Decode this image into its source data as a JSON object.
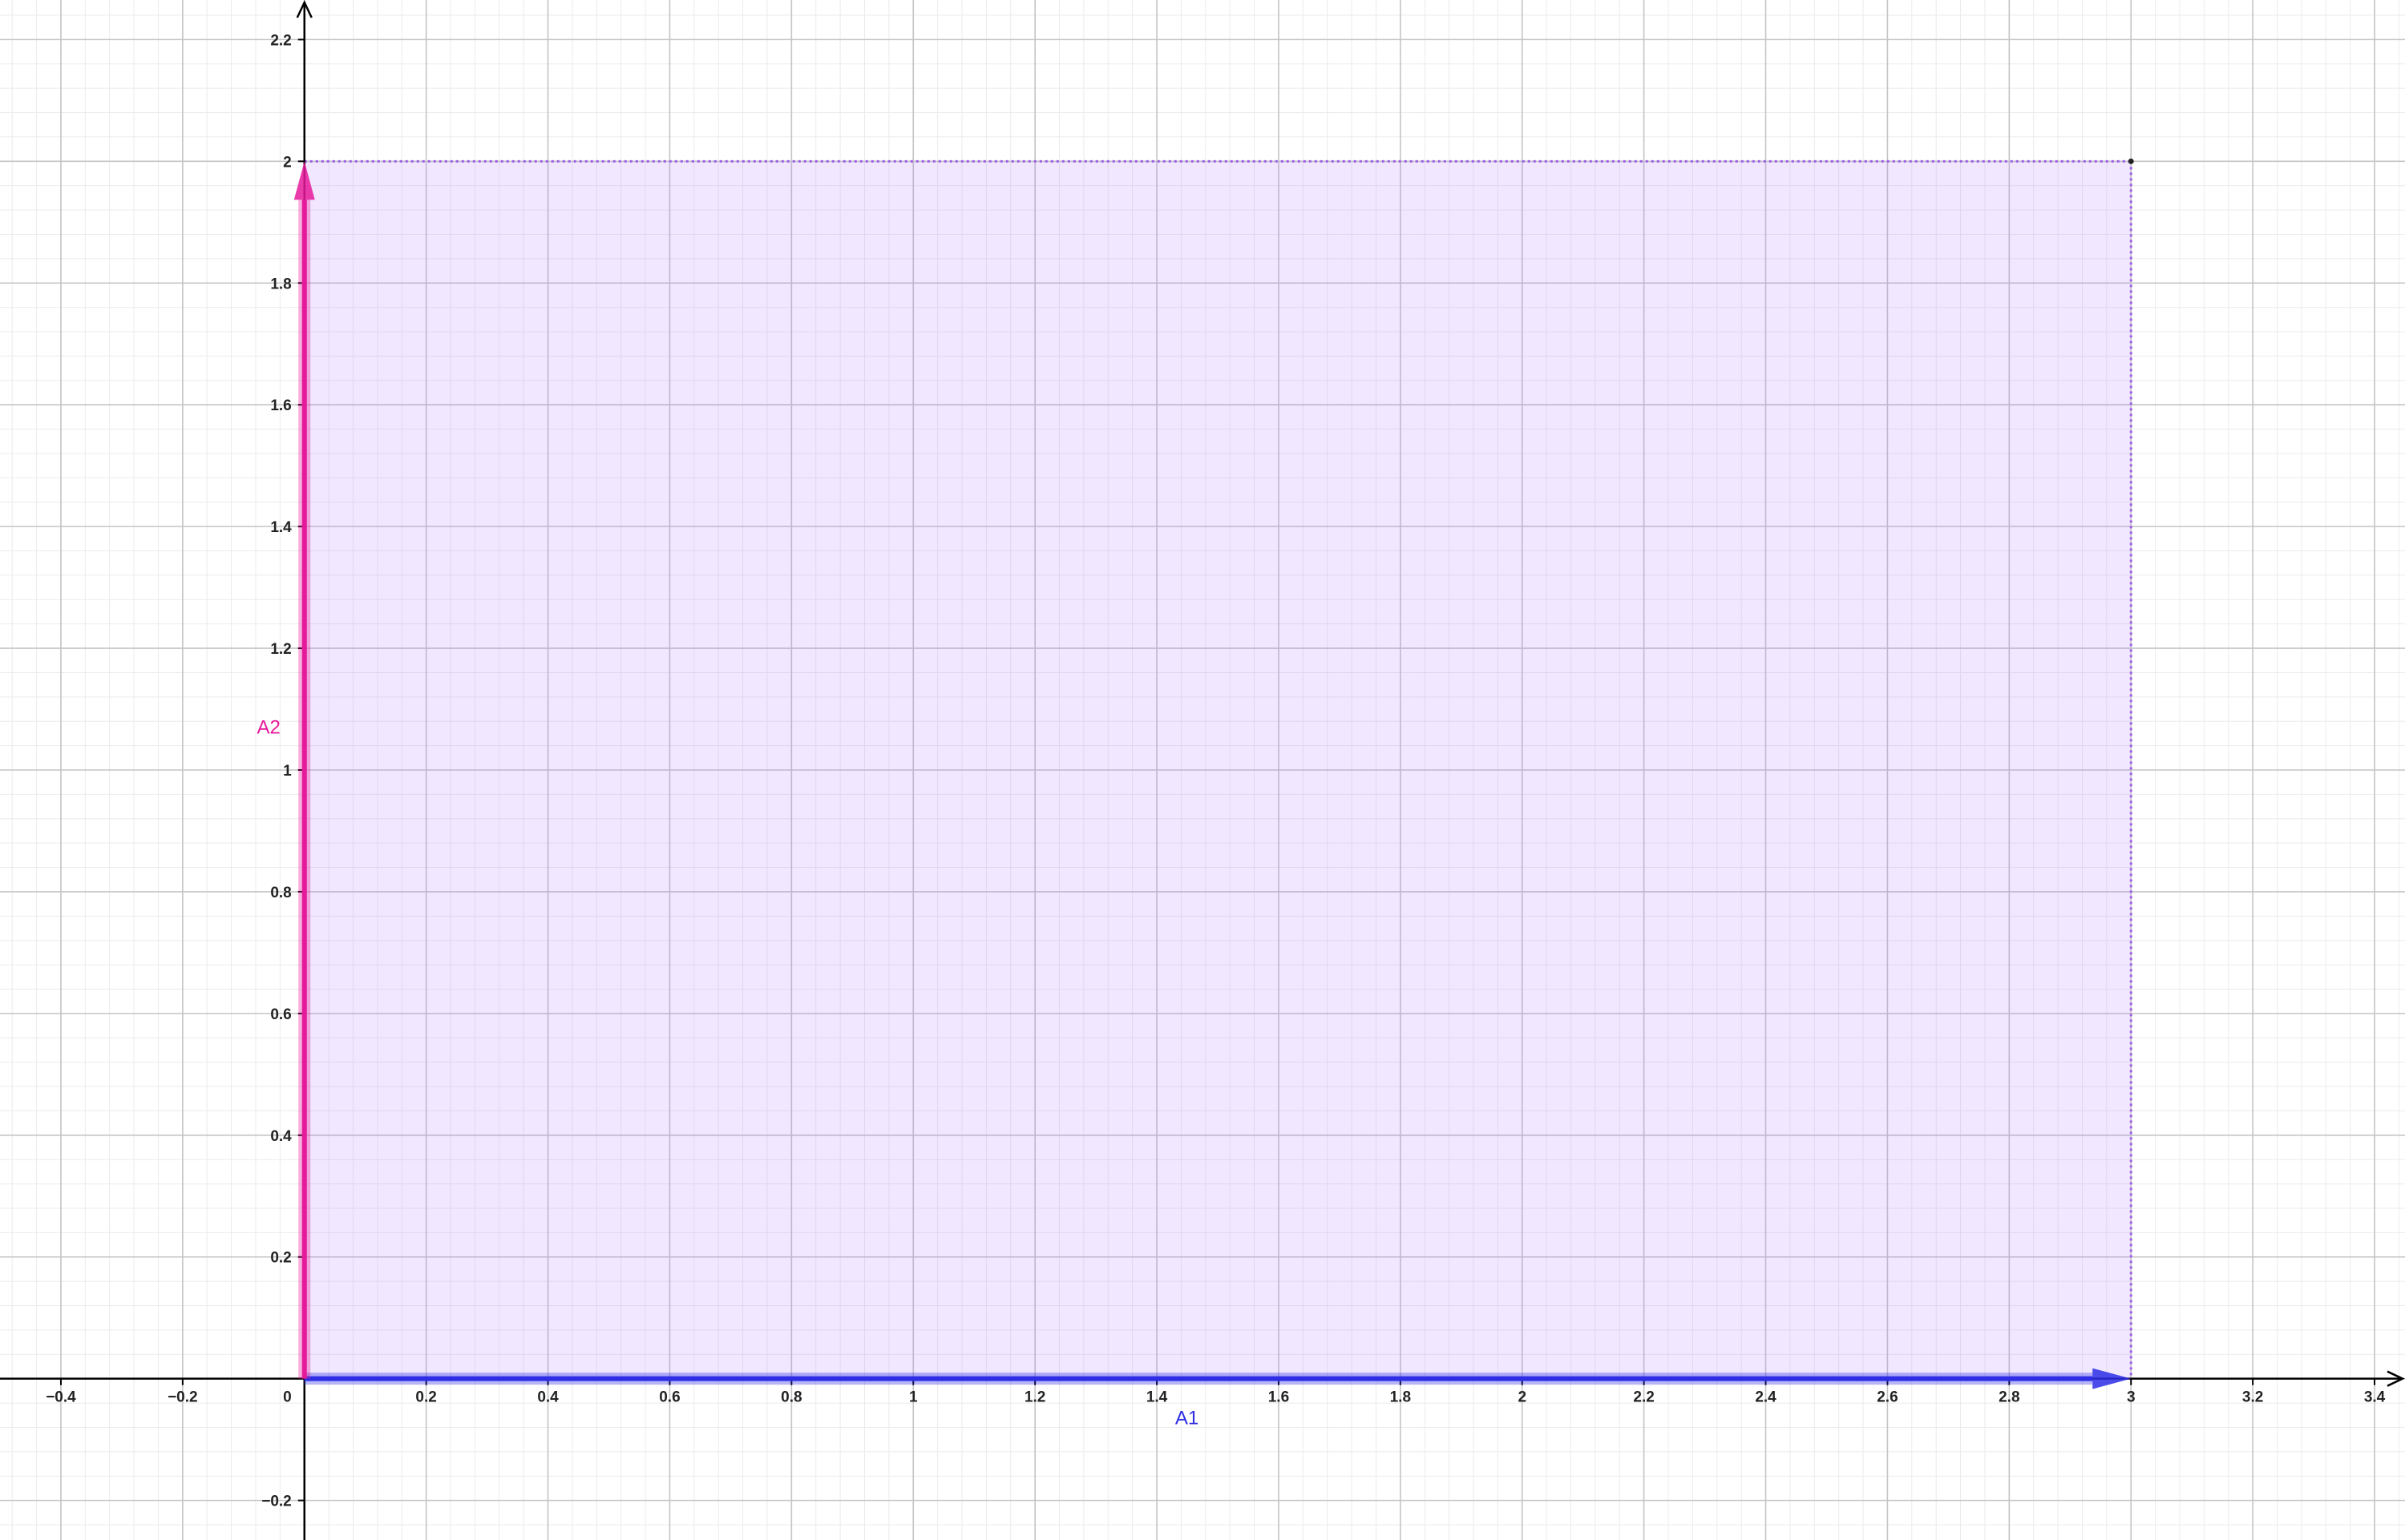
{
  "chart_data": {
    "type": "vector-plot",
    "title": "",
    "xlabel": "",
    "ylabel": "",
    "xlim": [
      -0.5,
      3.45
    ],
    "ylim": [
      -0.265,
      2.265
    ],
    "grid": true,
    "major_step": 0.2,
    "minor_step": 0.04,
    "x_ticks": [
      -0.4,
      -0.2,
      0.2,
      0.4,
      0.6,
      0.8,
      1,
      1.2,
      1.4,
      1.6,
      1.8,
      2,
      2.2,
      2.4,
      2.6,
      2.8,
      3,
      3.2,
      3.4
    ],
    "x_tick_labels": [
      "−0.4",
      "−0.2",
      "0.2",
      "0.4",
      "0.6",
      "0.8",
      "1",
      "1.2",
      "1.4",
      "1.6",
      "1.8",
      "2",
      "2.2",
      "2.4",
      "2.6",
      "2.8",
      "3",
      "3.2",
      "3.4"
    ],
    "y_ticks": [
      -0.2,
      0.2,
      0.4,
      0.6,
      0.8,
      1,
      1.2,
      1.4,
      1.6,
      1.8,
      2,
      2.2
    ],
    "y_tick_labels": [
      "−0.2",
      "0.2",
      "0.4",
      "0.6",
      "0.8",
      "1",
      "1.2",
      "1.4",
      "1.6",
      "1.8",
      "2",
      "2.2"
    ],
    "origin_label": "0",
    "vectors": [
      {
        "name": "A1",
        "from": [
          0,
          0
        ],
        "to": [
          3,
          0
        ],
        "color": "#2d2de6",
        "label_at": [
          1.43,
          -0.075
        ]
      },
      {
        "name": "A2",
        "from": [
          0,
          0
        ],
        "to": [
          0,
          2
        ],
        "color": "#e6199b",
        "label_at": [
          -0.078,
          1.06
        ]
      }
    ],
    "region": {
      "corners": [
        [
          0,
          0
        ],
        [
          3,
          0
        ],
        [
          3,
          2
        ],
        [
          0,
          2
        ]
      ],
      "fill": "#b380ff",
      "edge": "#9b5fe6"
    },
    "points": [
      {
        "at": [
          3,
          2
        ],
        "color": "#222222"
      }
    ],
    "colors": {
      "axis": "#000000",
      "grid_major": "#c4c4c4",
      "grid_minor": "#ebebeb"
    }
  }
}
